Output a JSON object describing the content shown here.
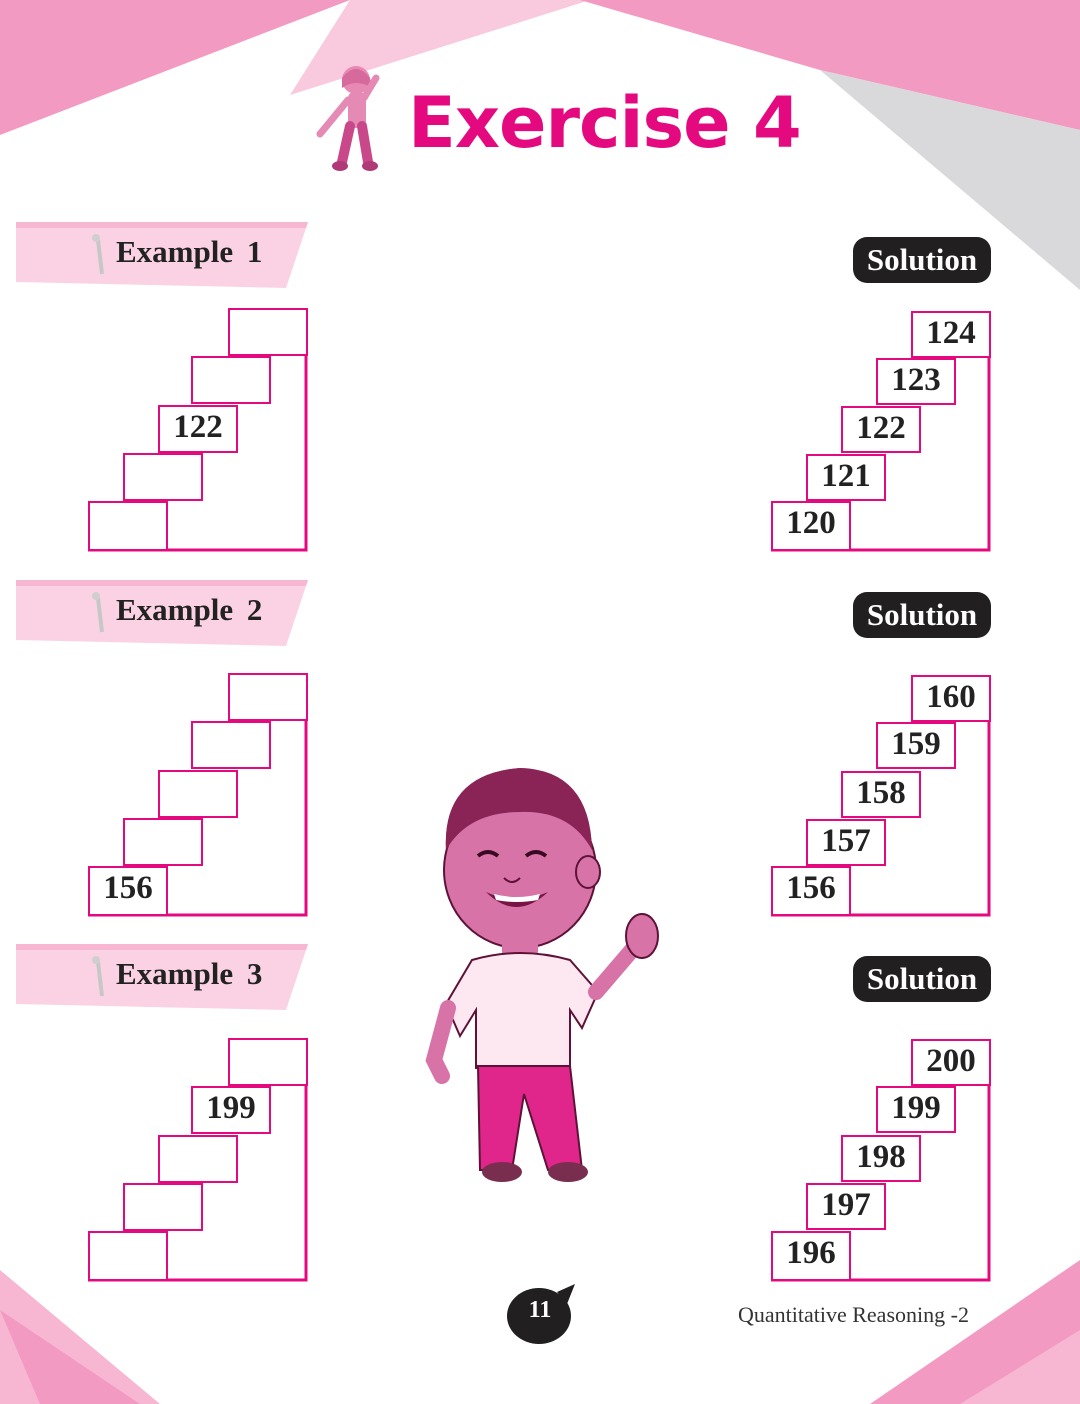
{
  "title": "Exercise 4",
  "colors": {
    "accent": "#e5097f",
    "light_pink": "#f5a3c7",
    "dark": "#221f20",
    "grey": "#d9d9db"
  },
  "examples": [
    {
      "label": "Example 1",
      "given": [
        "",
        "",
        "122",
        "",
        ""
      ]
    },
    {
      "label": "Example 2",
      "given": [
        "",
        "",
        "",
        "",
        "156"
      ]
    },
    {
      "label": "Example 3",
      "given": [
        "",
        "199",
        "",
        "",
        ""
      ]
    }
  ],
  "solutions": [
    {
      "label": "Solution",
      "values": [
        "124",
        "123",
        "122",
        "121",
        "120"
      ]
    },
    {
      "label": "Solution",
      "values": [
        "160",
        "159",
        "158",
        "157",
        "156"
      ]
    },
    {
      "label": "Solution",
      "values": [
        "200",
        "199",
        "198",
        "197",
        "196"
      ]
    }
  ],
  "footer": {
    "page_number": "11",
    "book_title": "Quantitative Reasoning -2"
  }
}
